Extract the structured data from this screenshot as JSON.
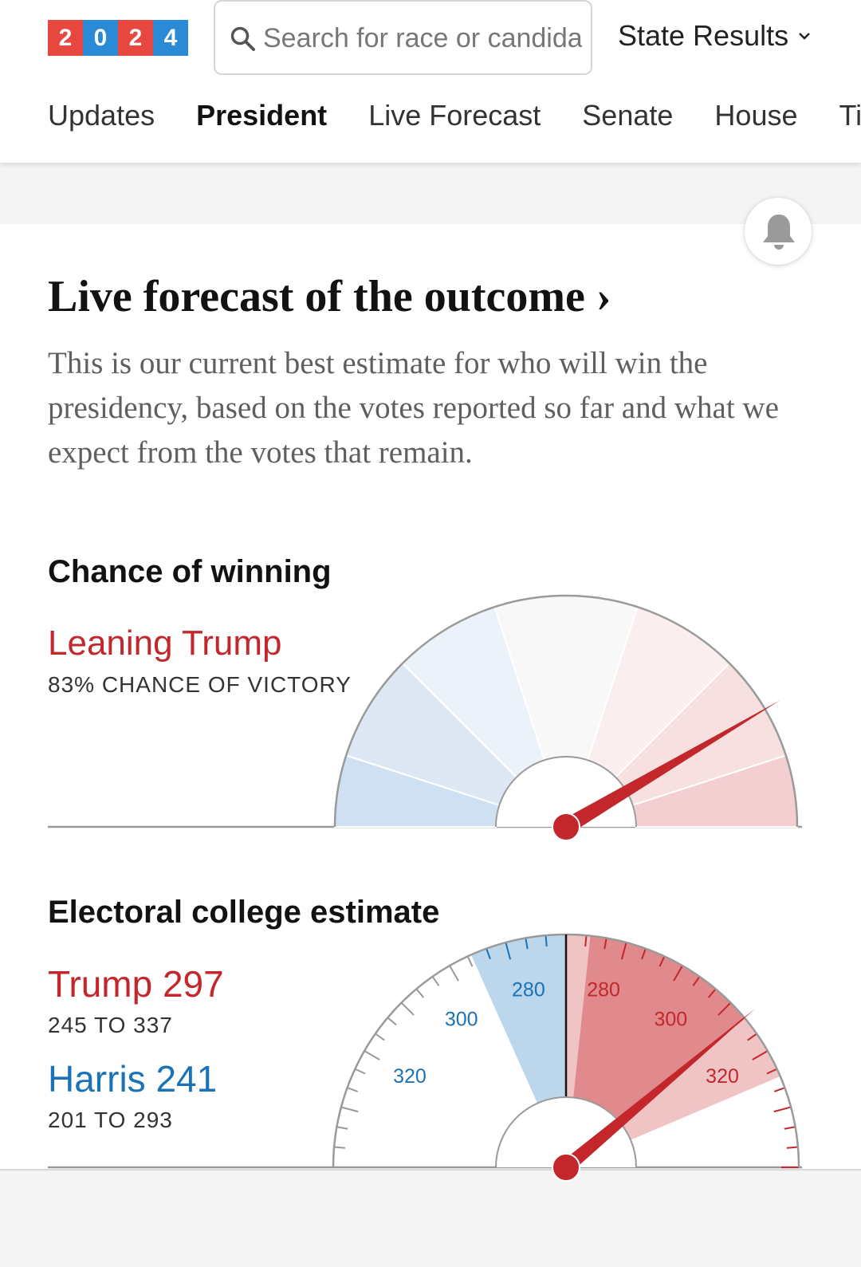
{
  "header": {
    "logo_digits": [
      "2",
      "0",
      "2",
      "4"
    ],
    "search_placeholder": "Search for race or candidate",
    "state_results_label": "State Results"
  },
  "nav": {
    "items": [
      "Updates",
      "President",
      "Live Forecast",
      "Senate",
      "House",
      "Tim"
    ]
  },
  "forecast": {
    "title": "Live forecast of the outcome ›",
    "description": "This is our current best estimate for who will win the presidency, based on the votes reported so far and what we expect from the votes that remain."
  },
  "chance": {
    "title": "Chance of winning",
    "status": "Leaning Trump",
    "subtitle": "83% CHANCE OF VICTORY",
    "trump_probability": 0.83
  },
  "electoral": {
    "title": "Electoral college estimate",
    "trump_label": "Trump 297",
    "trump_range": "245 TO 337",
    "harris_label": "Harris 241",
    "harris_range": "201 TO 293",
    "needle_value": 297,
    "scale_labels": {
      "blue": [
        "280",
        "300",
        "320"
      ],
      "red": [
        "280",
        "300",
        "320"
      ]
    }
  },
  "colors": {
    "red": "#c3272c",
    "blue": "#1a72b7",
    "logo_red": "#e8473f",
    "logo_blue": "#2a8ad6"
  }
}
